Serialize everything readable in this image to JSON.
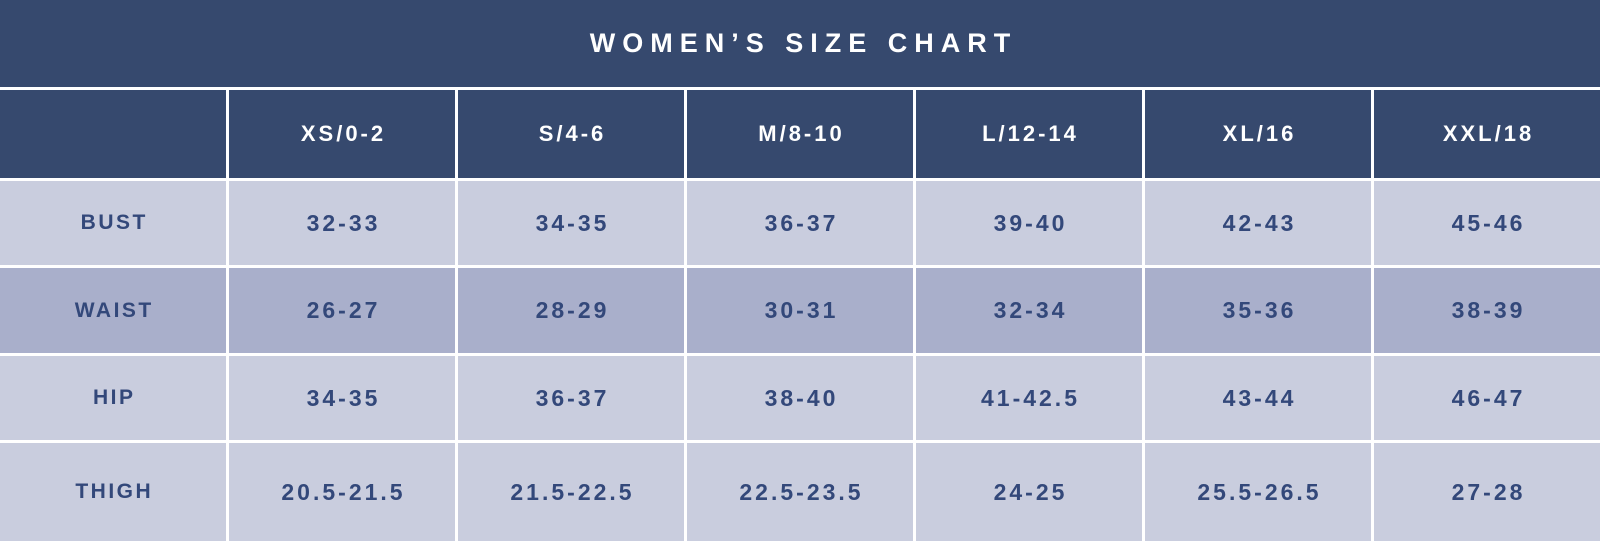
{
  "colors": {
    "navy": "#36496E",
    "row_light": "#C9CDDE",
    "row_dark": "#A9AFCB",
    "grid_line": "#FFFFFF",
    "text_light": "#FFFFFF",
    "text_dark": "#33487A"
  },
  "chart_data": {
    "type": "table",
    "title": "WOMEN’S SIZE CHART",
    "corner_label": "",
    "column_headers": [
      "XS/0-2",
      "S/4-6",
      "M/8-10",
      "L/12-14",
      "XL/16",
      "XXL/18"
    ],
    "row_headers": [
      "BUST",
      "WAIST",
      "HIP",
      "THIGH"
    ],
    "cells": [
      [
        "32-33",
        "34-35",
        "36-37",
        "39-40",
        "42-43",
        "45-46"
      ],
      [
        "26-27",
        "28-29",
        "30-31",
        "32-34",
        "35-36",
        "38-39"
      ],
      [
        "34-35",
        "36-37",
        "38-40",
        "41-42.5",
        "43-44",
        "46-47"
      ],
      [
        "20.5-21.5",
        "21.5-22.5",
        "22.5-23.5",
        "24-25",
        "25.5-26.5",
        "27-28"
      ]
    ],
    "layout": {
      "grid": "on",
      "grid_color": "#FFFFFF",
      "row_shading": [
        "light",
        "dark",
        "light",
        "light"
      ]
    }
  }
}
